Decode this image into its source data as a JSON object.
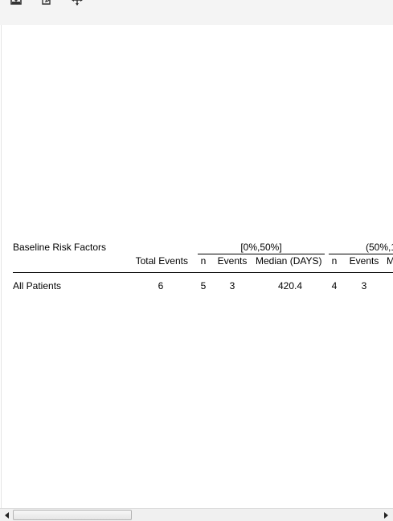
{
  "toolbar": {
    "icons": [
      "download-icon",
      "edit-icon",
      "move-icon"
    ]
  },
  "table": {
    "row_header": "Baseline Risk Factors",
    "total_events_header": "Total Events",
    "group1": {
      "label": "[0%,50%]",
      "n_header": "n",
      "events_header": "Events",
      "median_header": "Median (DAYS)"
    },
    "group2": {
      "label": "(50%,1",
      "n_header": "n",
      "events_header": "Events",
      "median_header": "M"
    },
    "rows": [
      {
        "label": "All Patients",
        "total_events": "6",
        "g1_n": "5",
        "g1_events": "3",
        "g1_median": "420.4",
        "g2_n": "4",
        "g2_events": "3"
      }
    ]
  }
}
